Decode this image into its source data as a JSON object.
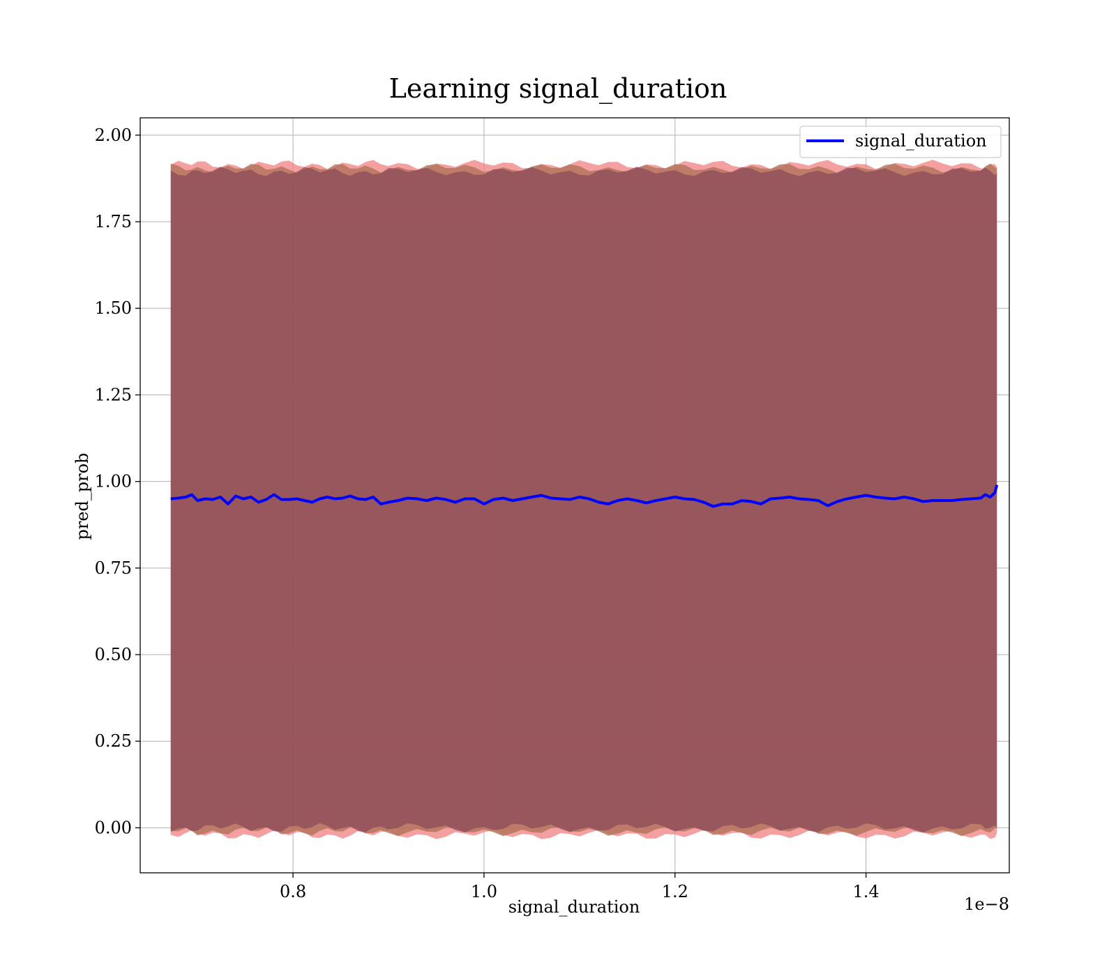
{
  "chart_data": {
    "type": "area",
    "title": "Learning signal_duration",
    "xlabel": "signal_duration",
    "ylabel": "pred_prob",
    "x_offset_label": "1e−8",
    "x_scale": 1e-08,
    "xlim": [
      0.64,
      1.55
    ],
    "ylim": [
      -0.13,
      2.05
    ],
    "x_ticks": [
      0.8,
      1.0,
      1.2,
      1.4
    ],
    "x_tick_labels": [
      "0.8",
      "1.0",
      "1.2",
      "1.4"
    ],
    "y_ticks": [
      0.0,
      0.25,
      0.5,
      0.75,
      1.0,
      1.25,
      1.5,
      1.75,
      2.0
    ],
    "y_tick_labels": [
      "0.00",
      "0.25",
      "0.50",
      "0.75",
      "1.00",
      "1.25",
      "1.50",
      "1.75",
      "2.00"
    ],
    "grid": true,
    "legend": {
      "position": "top-right",
      "entries": [
        "signal_duration"
      ]
    },
    "colors": {
      "line": "#0000ff",
      "inner_band": "#8b4a5a",
      "outer_band": "#f08080",
      "mid_band": "#b0735a"
    },
    "series": [
      {
        "name": "signal_duration",
        "x": [
          0.672,
          0.68,
          0.688,
          0.694,
          0.7,
          0.708,
          0.716,
          0.724,
          0.732,
          0.74,
          0.748,
          0.756,
          0.764,
          0.772,
          0.78,
          0.788,
          0.796,
          0.804,
          0.812,
          0.82,
          0.828,
          0.836,
          0.844,
          0.852,
          0.86,
          0.868,
          0.876,
          0.884,
          0.892,
          0.9,
          0.91,
          0.92,
          0.93,
          0.94,
          0.95,
          0.96,
          0.97,
          0.98,
          0.99,
          1.0,
          1.01,
          1.02,
          1.03,
          1.04,
          1.05,
          1.06,
          1.07,
          1.08,
          1.09,
          1.1,
          1.11,
          1.12,
          1.13,
          1.14,
          1.15,
          1.16,
          1.17,
          1.18,
          1.19,
          1.2,
          1.21,
          1.22,
          1.23,
          1.24,
          1.25,
          1.26,
          1.27,
          1.28,
          1.29,
          1.3,
          1.31,
          1.32,
          1.33,
          1.34,
          1.35,
          1.36,
          1.37,
          1.38,
          1.39,
          1.4,
          1.41,
          1.42,
          1.43,
          1.44,
          1.45,
          1.46,
          1.47,
          1.48,
          1.49,
          1.5,
          1.51,
          1.52,
          1.525,
          1.53,
          1.535,
          1.537
        ],
        "y": [
          0.95,
          0.952,
          0.955,
          0.962,
          0.945,
          0.95,
          0.948,
          0.955,
          0.935,
          0.958,
          0.95,
          0.955,
          0.94,
          0.948,
          0.962,
          0.948,
          0.948,
          0.95,
          0.945,
          0.94,
          0.95,
          0.955,
          0.95,
          0.952,
          0.958,
          0.95,
          0.948,
          0.955,
          0.935,
          0.94,
          0.945,
          0.952,
          0.95,
          0.945,
          0.952,
          0.948,
          0.94,
          0.95,
          0.95,
          0.935,
          0.948,
          0.952,
          0.945,
          0.95,
          0.955,
          0.96,
          0.952,
          0.95,
          0.948,
          0.955,
          0.95,
          0.94,
          0.935,
          0.945,
          0.95,
          0.945,
          0.938,
          0.945,
          0.95,
          0.955,
          0.95,
          0.948,
          0.94,
          0.928,
          0.935,
          0.935,
          0.945,
          0.942,
          0.935,
          0.95,
          0.952,
          0.955,
          0.95,
          0.948,
          0.945,
          0.93,
          0.942,
          0.95,
          0.955,
          0.96,
          0.955,
          0.952,
          0.95,
          0.955,
          0.95,
          0.942,
          0.945,
          0.945,
          0.945,
          0.948,
          0.95,
          0.952,
          0.962,
          0.955,
          0.968,
          0.99
        ],
        "band_inner": [
          0.0,
          1.895
        ],
        "band_outer": [
          -0.02,
          1.915
        ]
      }
    ]
  }
}
